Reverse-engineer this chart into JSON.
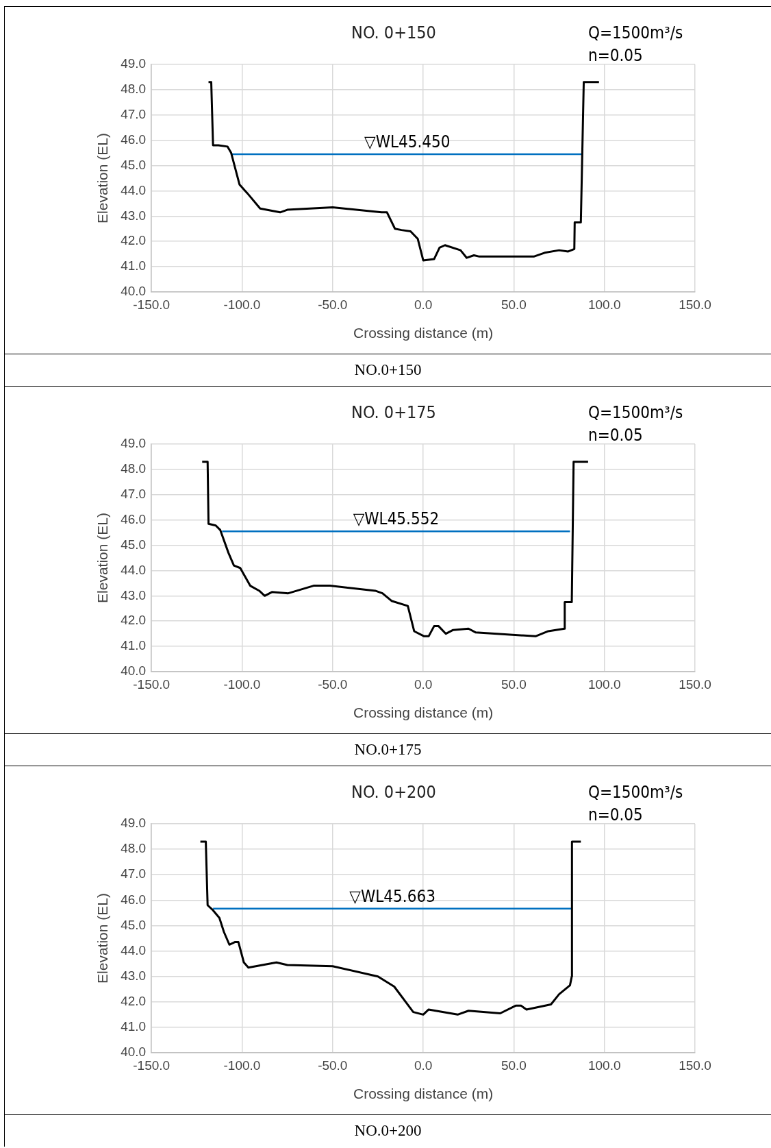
{
  "chart_data": [
    {
      "type": "line",
      "title": "NO. 0+150",
      "xlabel": "Crossing distance (m)",
      "ylabel": "Elevation (EL)",
      "annotations": [
        "Q=1500m³/s",
        "n=0.05",
        "▽WL45.450",
        "NO.0+150"
      ],
      "series": [
        {
          "color": "#000000",
          "x": [
            -118.5,
            -117,
            -116,
            -113,
            -108,
            -106,
            -101.4,
            -97,
            -90,
            -79,
            -75,
            -50,
            -23,
            -20,
            -15.6,
            -12,
            -7,
            -3,
            0,
            6,
            9,
            12,
            20.6,
            24,
            28,
            31,
            61,
            67,
            75,
            80,
            83.4,
            83.6,
            87,
            88.6,
            97
          ],
          "values": [
            48.3,
            48.3,
            45.8,
            45.8,
            45.75,
            45.5,
            44.25,
            43.9,
            43.3,
            43.15,
            43.25,
            43.35,
            43.15,
            43.15,
            42.5,
            42.45,
            42.4,
            42.1,
            41.25,
            41.3,
            41.75,
            41.85,
            41.65,
            41.35,
            41.45,
            41.4,
            41.4,
            41.55,
            41.65,
            41.6,
            41.7,
            42.75,
            42.75,
            48.3,
            48.3
          ]
        },
        {
          "color": "#0070c0",
          "x": [
            -105.6,
            88
          ],
          "values": [
            45.45,
            45.45
          ]
        }
      ],
      "xlim": [
        -150,
        150
      ],
      "ylim": [
        40,
        49
      ],
      "xticks": [
        {
          "value": -150,
          "label": "-150.0"
        },
        {
          "value": -100,
          "label": "-100.0"
        },
        {
          "value": -50,
          "label": "-50.0"
        },
        {
          "value": 0,
          "label": "0.0"
        },
        {
          "value": 50,
          "label": "50.0"
        },
        {
          "value": 100,
          "label": "100.0"
        },
        {
          "value": 150,
          "label": "150.0"
        }
      ],
      "yticks": [
        {
          "value": 40,
          "label": "40.0"
        },
        {
          "value": 41,
          "label": "41.0"
        },
        {
          "value": 42,
          "label": "42.0"
        },
        {
          "value": 43,
          "label": "43.0"
        },
        {
          "value": 44,
          "label": "44.0"
        },
        {
          "value": 45,
          "label": "45.0"
        },
        {
          "value": 46,
          "label": "46.0"
        },
        {
          "value": 47,
          "label": "47.0"
        },
        {
          "value": 48,
          "label": "48.0"
        },
        {
          "value": 49,
          "label": "49.0"
        }
      ],
      "grid": true,
      "marker": "none"
    },
    {
      "type": "line",
      "title": "NO. 0+175",
      "xlabel": "Crossing distance (m)",
      "ylabel": "Elevation (EL)",
      "annotations": [
        "Q=1500m³/s",
        "n=0.05",
        "▽WL45.552",
        "NO.0+175"
      ],
      "series": [
        {
          "color": "#000000",
          "x": [
            -122,
            -119,
            -118.5,
            -114.5,
            -112,
            -107.5,
            -104.5,
            -101,
            -95.5,
            -90.5,
            -87.5,
            -83.5,
            -74.5,
            -60.5,
            -51.5,
            -26.5,
            -22.5,
            -17.5,
            -8.5,
            -5,
            0.5,
            3,
            6,
            8.5,
            12.5,
            16.5,
            25,
            29,
            62,
            69,
            78,
            78.1,
            82,
            83,
            91
          ],
          "values": [
            48.3,
            48.3,
            45.85,
            45.78,
            45.6,
            44.7,
            44.2,
            44.1,
            43.4,
            43.2,
            43.0,
            43.15,
            43.1,
            43.4,
            43.4,
            43.2,
            43.1,
            42.8,
            42.6,
            41.6,
            41.4,
            41.4,
            41.8,
            41.8,
            41.5,
            41.65,
            41.7,
            41.55,
            41.4,
            41.6,
            41.7,
            42.75,
            42.75,
            48.3,
            48.3
          ]
        },
        {
          "color": "#0070c0",
          "x": [
            -111,
            81
          ],
          "values": [
            45.552,
            45.552
          ]
        }
      ],
      "xlim": [
        -150,
        150
      ],
      "ylim": [
        40,
        49
      ],
      "xticks": [
        {
          "value": -150,
          "label": "-150.0"
        },
        {
          "value": -100,
          "label": "-100.0"
        },
        {
          "value": -50,
          "label": "-50.0"
        },
        {
          "value": 0,
          "label": "0.0"
        },
        {
          "value": 50,
          "label": "50.0"
        },
        {
          "value": 100,
          "label": "100.0"
        },
        {
          "value": 150,
          "label": "150.0"
        }
      ],
      "yticks": [
        {
          "value": 40,
          "label": "40.0"
        },
        {
          "value": 41,
          "label": "41.0"
        },
        {
          "value": 42,
          "label": "42.0"
        },
        {
          "value": 43,
          "label": "43.0"
        },
        {
          "value": 44,
          "label": "44.0"
        },
        {
          "value": 45,
          "label": "45.0"
        },
        {
          "value": 46,
          "label": "46.0"
        },
        {
          "value": 47,
          "label": "47.0"
        },
        {
          "value": 48,
          "label": "48.0"
        },
        {
          "value": 49,
          "label": "49.0"
        }
      ],
      "grid": true,
      "marker": "none"
    },
    {
      "type": "line",
      "title": "NO. 0+200",
      "xlabel": "Crossing distance (m)",
      "ylabel": "Elevation (EL)",
      "annotations": [
        "Q=1500m³/s",
        "n=0.05",
        "▽WL45.663",
        "NO.0+200"
      ],
      "series": [
        {
          "color": "#000000",
          "x": [
            -123,
            -120,
            -119,
            -116,
            -112.5,
            -110,
            -107,
            -104,
            -102,
            -99,
            -96.5,
            -81,
            -75,
            -50,
            -25,
            -16,
            -5.5,
            0,
            3,
            19,
            25,
            42.5,
            51,
            54,
            57,
            70.5,
            75,
            81,
            82,
            82.1,
            87
          ],
          "values": [
            48.3,
            48.3,
            45.8,
            45.6,
            45.3,
            44.75,
            44.25,
            44.35,
            44.35,
            43.55,
            43.35,
            43.55,
            43.45,
            43.4,
            43.0,
            42.6,
            41.6,
            41.5,
            41.7,
            41.5,
            41.65,
            41.55,
            41.85,
            41.85,
            41.7,
            41.9,
            42.3,
            42.65,
            43.0,
            48.3,
            48.3
          ]
        },
        {
          "color": "#0070c0",
          "x": [
            -116,
            82
          ],
          "values": [
            45.663,
            45.663
          ]
        }
      ],
      "xlim": [
        -150,
        150
      ],
      "ylim": [
        40,
        49
      ],
      "xticks": [
        {
          "value": -150,
          "label": "-150.0"
        },
        {
          "value": -100,
          "label": "-100.0"
        },
        {
          "value": -50,
          "label": "-50.0"
        },
        {
          "value": 0,
          "label": "0.0"
        },
        {
          "value": 50,
          "label": "50.0"
        },
        {
          "value": 100,
          "label": "100.0"
        },
        {
          "value": 150,
          "label": "150.0"
        }
      ],
      "yticks": [
        {
          "value": 40,
          "label": "40.0"
        },
        {
          "value": 41,
          "label": "41.0"
        },
        {
          "value": 42,
          "label": "42.0"
        },
        {
          "value": 43,
          "label": "43.0"
        },
        {
          "value": 44,
          "label": "44.0"
        },
        {
          "value": 45,
          "label": "45.0"
        },
        {
          "value": 46,
          "label": "46.0"
        },
        {
          "value": 47,
          "label": "47.0"
        },
        {
          "value": 48,
          "label": "48.0"
        },
        {
          "value": 49,
          "label": "49.0"
        }
      ],
      "grid": true,
      "marker": "none"
    }
  ]
}
